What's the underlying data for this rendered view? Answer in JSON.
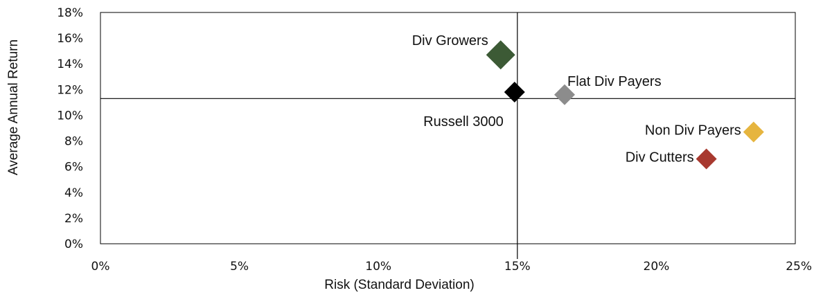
{
  "chart_data": {
    "type": "scatter",
    "xlabel": "Risk (Standard Deviation)",
    "ylabel": "Average Annual Return",
    "xlim": [
      0,
      25
    ],
    "ylim": [
      0,
      18
    ],
    "x_ticks": [
      "0%",
      "5%",
      "10%",
      "15%",
      "20%",
      "25%"
    ],
    "y_ticks": [
      "0%",
      "2%",
      "4%",
      "6%",
      "8%",
      "10%",
      "12%",
      "14%",
      "16%",
      "18%"
    ],
    "grid": false,
    "reference_lines": {
      "x": 15.0,
      "y": 11.3
    },
    "points": [
      {
        "name": "Div Growers",
        "x": 14.4,
        "y": 14.7,
        "color": "#3c5a35",
        "label_pos": "upper-left"
      },
      {
        "name": "Russell 3000",
        "x": 14.9,
        "y": 11.8,
        "color": "#000000",
        "label_pos": "lower-left"
      },
      {
        "name": "Flat Div Payers",
        "x": 16.7,
        "y": 11.6,
        "color": "#8c8c8c",
        "label_pos": "upper-right"
      },
      {
        "name": "Non Div Payers",
        "x": 23.5,
        "y": 8.7,
        "color": "#e6b53f",
        "label_pos": "left"
      },
      {
        "name": "Div Cutters",
        "x": 21.8,
        "y": 6.6,
        "color": "#a8392f",
        "label_pos": "left"
      }
    ]
  }
}
